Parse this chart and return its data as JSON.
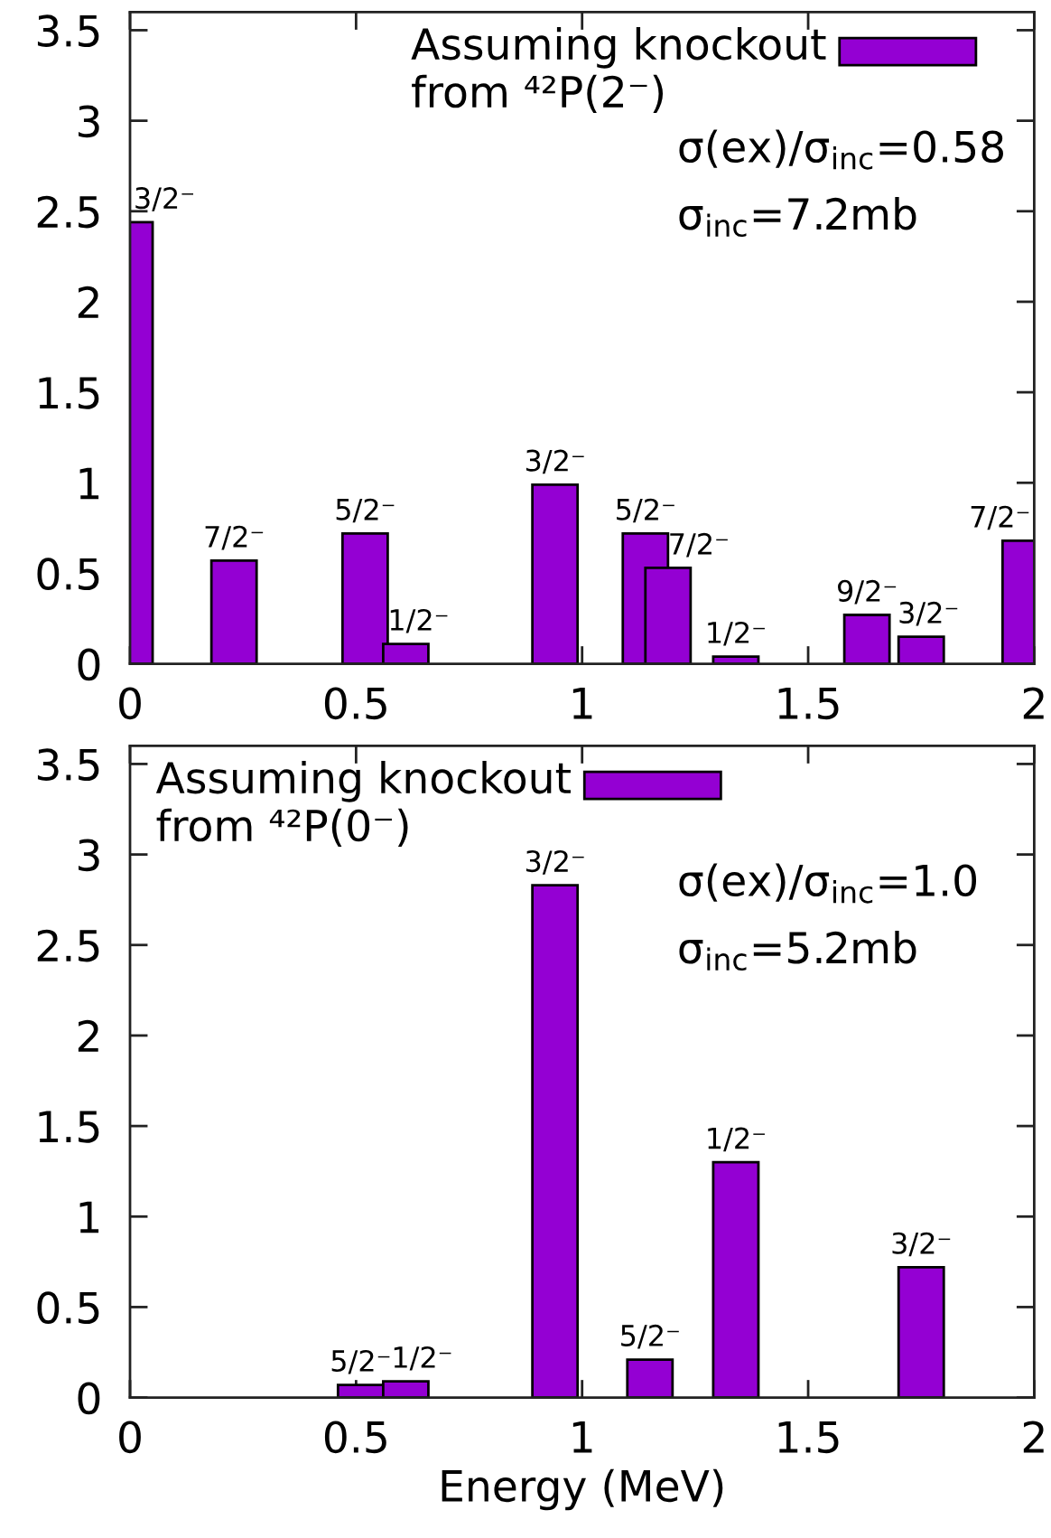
{
  "chart_data": [
    {
      "type": "bar",
      "x": [
        0,
        0.23,
        0.52,
        0.61,
        0.94,
        1.14,
        1.19,
        1.34,
        1.63,
        1.75,
        1.98
      ],
      "series": [
        {
          "name": "Assuming knockout\nfrom ⁴²P(2⁻)",
          "color": "#9400d3",
          "values": [
            2.44,
            0.57,
            0.72,
            0.11,
            0.99,
            0.72,
            0.53,
            0.04,
            0.27,
            0.15,
            0.68
          ]
        }
      ],
      "xlim": [
        0,
        2
      ],
      "ylim": [
        0,
        3.6
      ],
      "xticks": [
        0,
        0.5,
        1,
        1.5,
        2
      ],
      "yticks": [
        0,
        0.5,
        1,
        1.5,
        2,
        2.5,
        3,
        3.5
      ],
      "legend": "top right",
      "annotations": [
        {
          "text": "3/2⁻",
          "x": 0,
          "y": 2.44
        },
        {
          "text": "7/2⁻",
          "x": 0.23,
          "y": 0.57
        },
        {
          "text": "5/2⁻",
          "x": 0.52,
          "y": 0.72
        },
        {
          "text": "1/2⁻",
          "x": 0.61,
          "y": 0.11
        },
        {
          "text": "3/2⁻",
          "x": 0.94,
          "y": 0.99
        },
        {
          "text": "5/2⁻",
          "x": 1.14,
          "y": 0.72
        },
        {
          "text": "7/2⁻",
          "x": 1.19,
          "y": 0.53
        },
        {
          "text": "1/2⁻",
          "x": 1.34,
          "y": 0.04
        },
        {
          "text": "9/2⁻",
          "x": 1.63,
          "y": 0.27
        },
        {
          "text": "3/2⁻",
          "x": 1.75,
          "y": 0.15
        },
        {
          "text": "7/2⁻",
          "x": 1.98,
          "y": 0.68
        },
        "σ(ex)/σ$_{inc}$=0.58",
        "σ$_{inc}$=7.2mb"
      ]
    },
    {
      "type": "bar",
      "x": [
        0.51,
        0.61,
        0.94,
        1.15,
        1.34,
        1.75
      ],
      "series": [
        {
          "name": "Assuming knockout\nfrom ⁴²P(0⁻)",
          "color": "#9400d3",
          "values": [
            0.07,
            0.09,
            2.83,
            0.21,
            1.3,
            0.72
          ]
        }
      ],
      "xlim": [
        0,
        2
      ],
      "ylim": [
        0,
        3.6
      ],
      "xticks": [
        0,
        0.5,
        1,
        1.5,
        2
      ],
      "yticks": [
        0,
        0.5,
        1,
        1.5,
        2,
        2.5,
        3,
        3.5
      ],
      "legend": "top left",
      "xlabel": "Energy (MeV)",
      "annotations": [
        {
          "text": "5/2⁻",
          "x": 0.51,
          "y": 0.07
        },
        {
          "text": "1/2⁻",
          "x": 0.61,
          "y": 0.09
        },
        {
          "text": "3/2⁻",
          "x": 0.94,
          "y": 2.83
        },
        {
          "text": "5/2⁻",
          "x": 1.15,
          "y": 0.21
        },
        {
          "text": "1/2⁻",
          "x": 1.34,
          "y": 1.3
        },
        {
          "text": "3/2⁻",
          "x": 1.75,
          "y": 0.72
        },
        "σ(ex)/σ$_{inc}$=1.0",
        "σ$_{inc}$=5.2mb"
      ]
    }
  ]
}
